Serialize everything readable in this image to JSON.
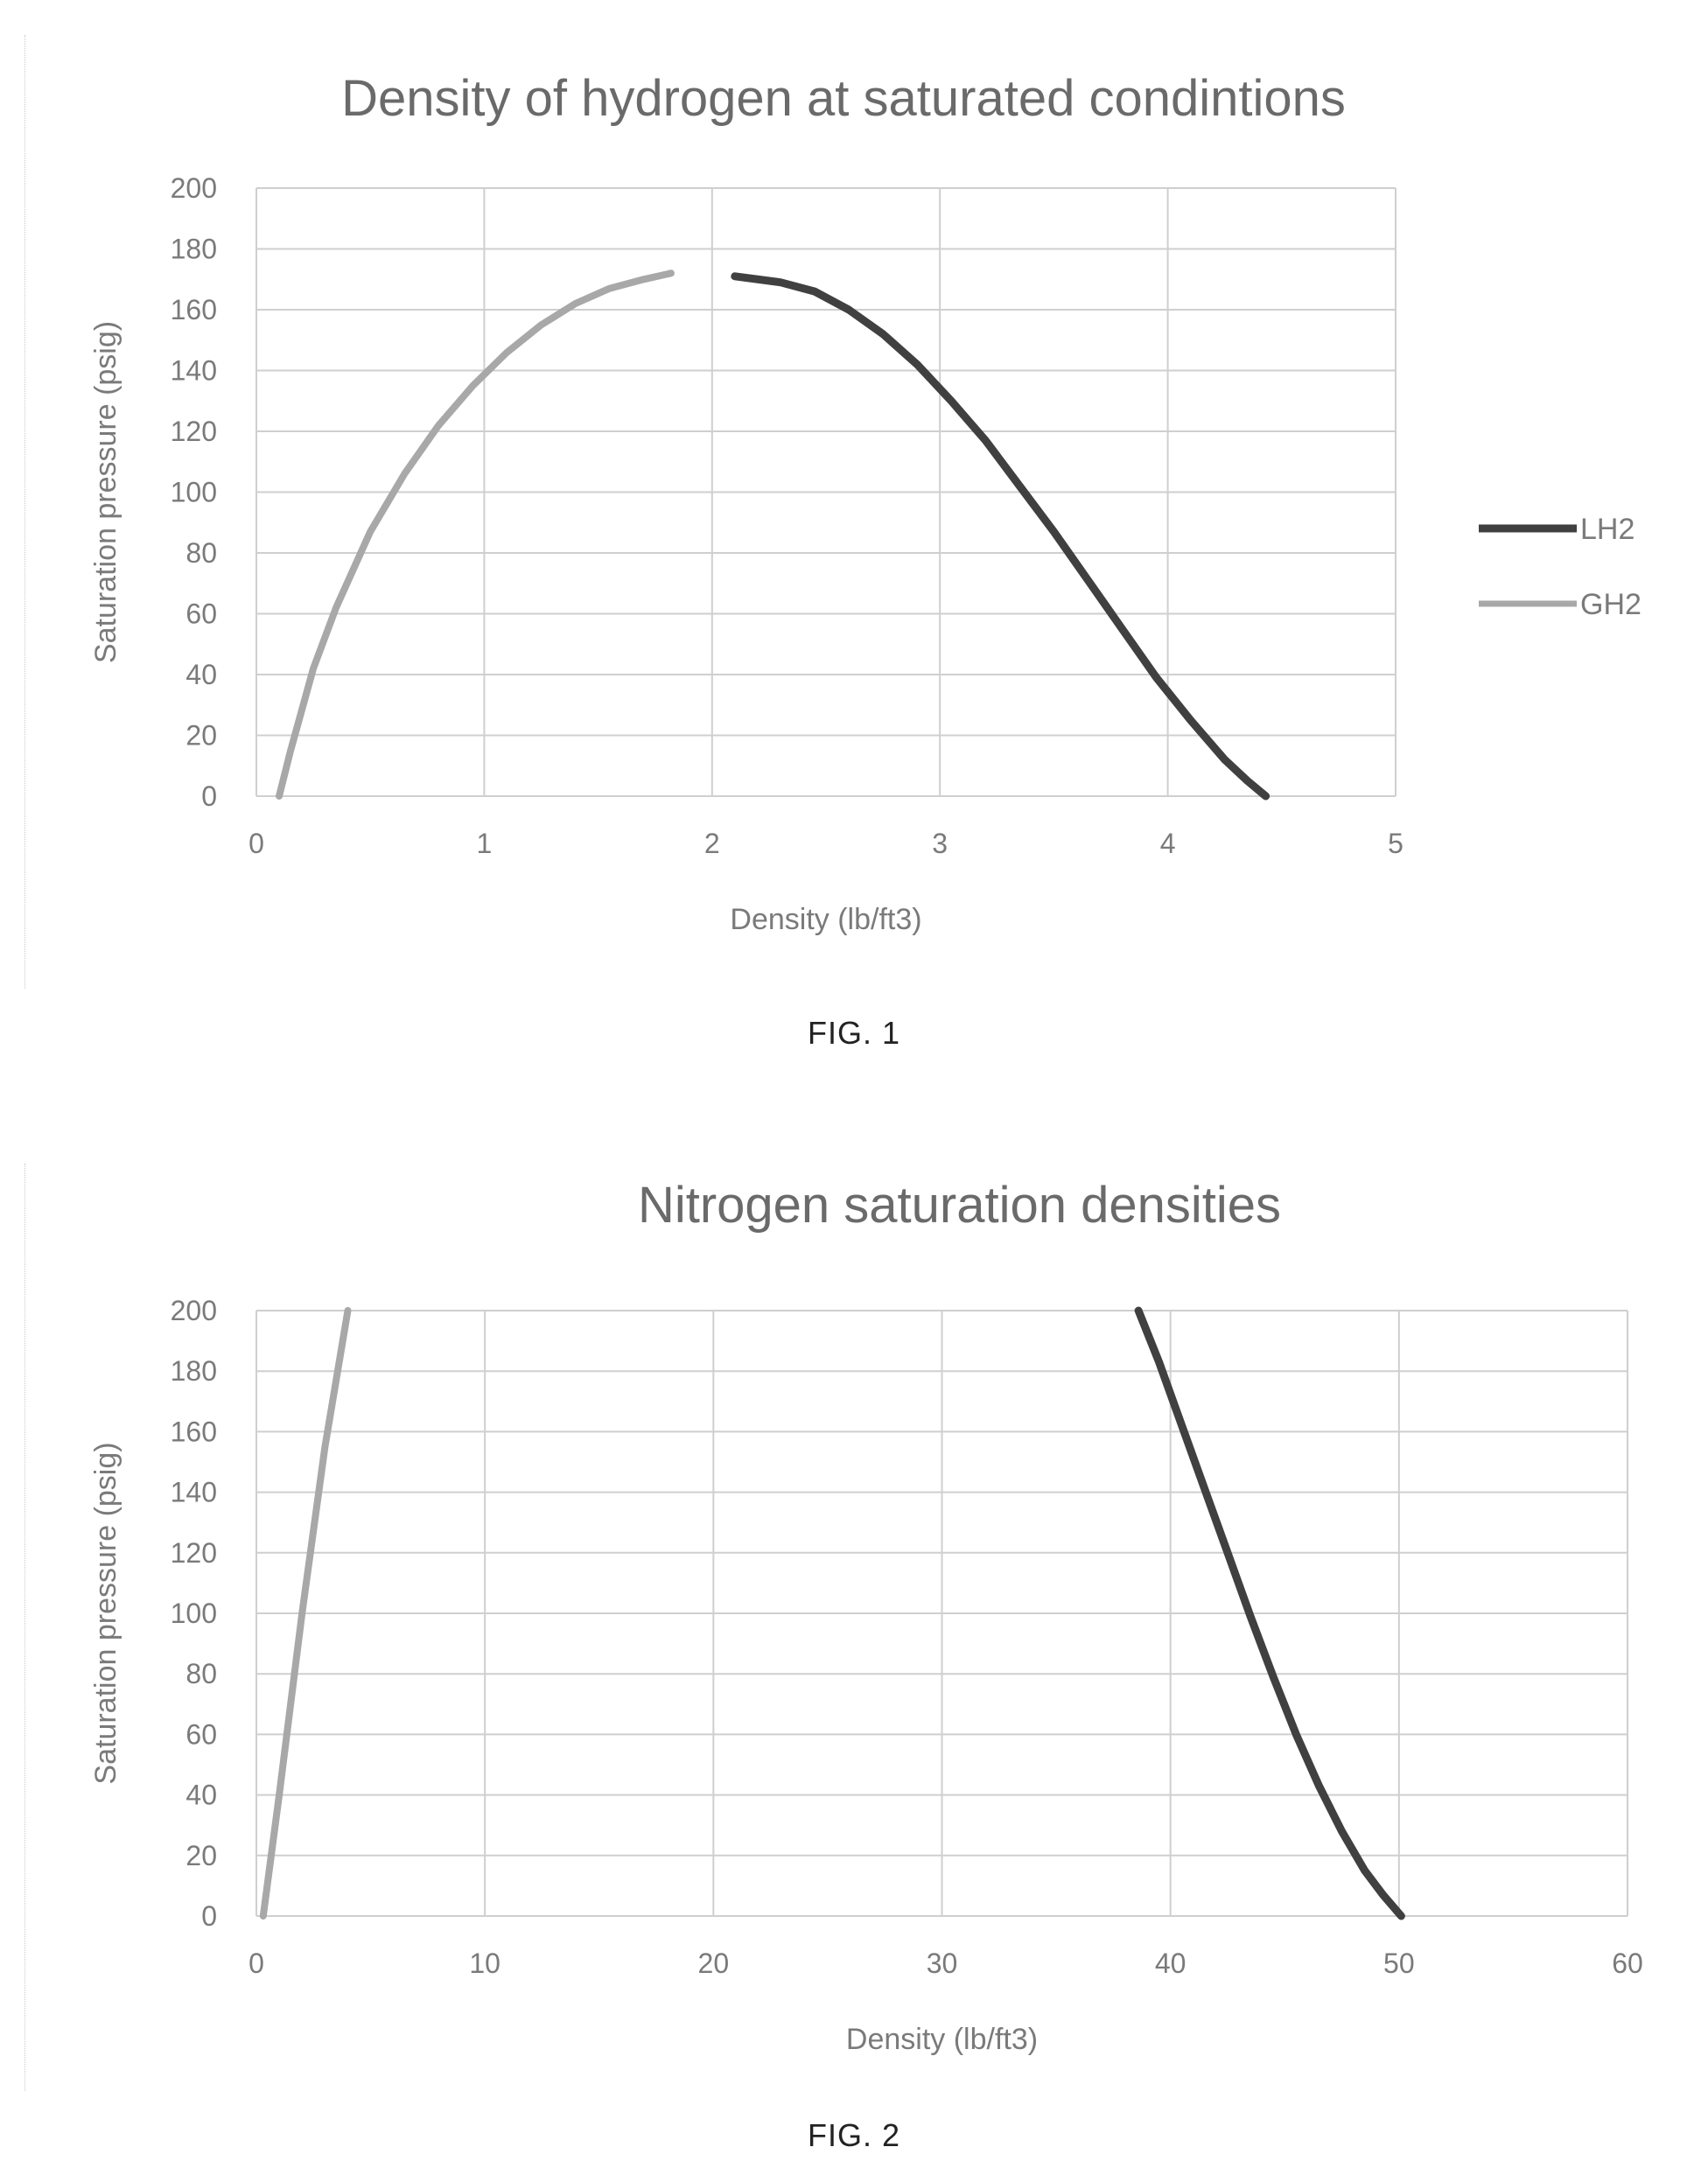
{
  "colors": {
    "lh2": "#404040",
    "gh2": "#a8a8a8",
    "grid": "#cfcfcf",
    "axis_text": "#7a7a7a",
    "title_text": "#6a6a6a"
  },
  "captions": [
    "FIG. 1",
    "FIG. 2"
  ],
  "chart_data": [
    {
      "type": "line",
      "title": "Density of hydrogen at saturated condintions",
      "xlabel": "Density (lb/ft3)",
      "ylabel": "Saturation pressure (psig)",
      "xlim": [
        0,
        5
      ],
      "ylim": [
        0,
        200
      ],
      "x_ticks": [
        "0",
        "1",
        "2",
        "3",
        "4",
        "5"
      ],
      "y_ticks": [
        "0",
        "20",
        "40",
        "60",
        "80",
        "100",
        "120",
        "140",
        "160",
        "180",
        "200"
      ],
      "grid": true,
      "legend": {
        "position": "right",
        "entries": [
          "LH2",
          "GH2"
        ]
      },
      "series": [
        {
          "name": "LH2",
          "color": "#404040",
          "x": [
            2.1,
            2.3,
            2.45,
            2.6,
            2.75,
            2.9,
            3.05,
            3.2,
            3.35,
            3.5,
            3.65,
            3.8,
            3.95,
            4.1,
            4.25,
            4.35,
            4.43
          ],
          "y": [
            171,
            169,
            166,
            160,
            152,
            142,
            130,
            117,
            102,
            87,
            71,
            55,
            39,
            25,
            12,
            5,
            0
          ]
        },
        {
          "name": "GH2",
          "color": "#a8a8a8",
          "x": [
            0.1,
            0.15,
            0.25,
            0.35,
            0.5,
            0.65,
            0.8,
            0.95,
            1.1,
            1.25,
            1.4,
            1.55,
            1.7,
            1.82
          ],
          "y": [
            0,
            15,
            42,
            62,
            87,
            106,
            122,
            135,
            146,
            155,
            162,
            167,
            170,
            172
          ]
        }
      ]
    },
    {
      "type": "line",
      "title": "Nitrogen saturation densities",
      "xlabel": "Density (lb/ft3)",
      "ylabel": "Saturation pressure (psig)",
      "xlim": [
        0,
        60
      ],
      "ylim": [
        0,
        200
      ],
      "x_ticks": [
        "0",
        "10",
        "20",
        "30",
        "40",
        "50",
        "60"
      ],
      "y_ticks": [
        "0",
        "20",
        "40",
        "60",
        "80",
        "100",
        "120",
        "140",
        "160",
        "180",
        "200"
      ],
      "grid": true,
      "series": [
        {
          "color": "#404040",
          "x": [
            38.6,
            39.5,
            40.5,
            41.5,
            42.5,
            43.5,
            44.5,
            45.5,
            46.5,
            47.5,
            48.5,
            49.3,
            50.1
          ],
          "y": [
            200,
            183,
            162,
            141,
            120,
            99,
            79,
            60,
            43,
            28,
            15,
            7,
            0
          ]
        },
        {
          "color": "#a8a8a8",
          "x": [
            0.3,
            1.0,
            2.0,
            3.0,
            4.0
          ],
          "y": [
            0,
            40,
            100,
            155,
            200
          ]
        }
      ]
    }
  ]
}
